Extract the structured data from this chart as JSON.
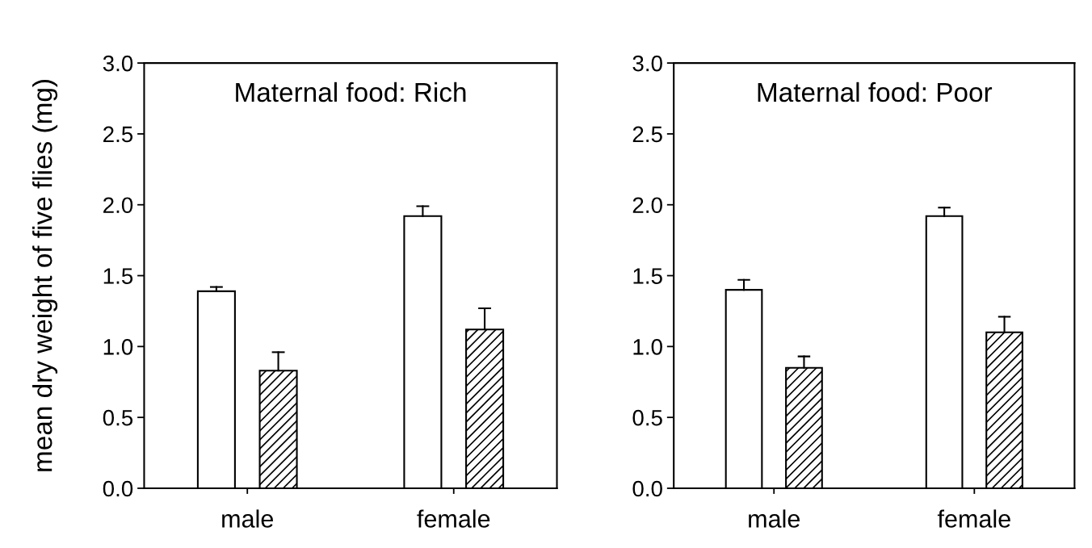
{
  "chart_data": [
    {
      "type": "bar",
      "title": "Maternal food: Rich",
      "ylabel": "mean dry weight of five flies (mg)",
      "categories": [
        "male",
        "female"
      ],
      "ylim": [
        0,
        3.0
      ],
      "yticks": [
        {
          "value": 0,
          "label": "0.0"
        },
        {
          "value": 0.5,
          "label": "0.5"
        },
        {
          "value": 1,
          "label": "1.0"
        },
        {
          "value": 1.5,
          "label": "1.5"
        },
        {
          "value": 2,
          "label": "2.0"
        },
        {
          "value": 2.5,
          "label": "2.5"
        },
        {
          "value": 3,
          "label": "3.0"
        }
      ],
      "series": [
        {
          "color": "#ffffff",
          "values": [
            1.39,
            1.92
          ],
          "errors": [
            [
              1.39,
              1.42
            ],
            [
              1.92,
              1.99
            ]
          ]
        },
        {
          "color": "#000000",
          "values": [
            0.83,
            1.12
          ],
          "errors": [
            [
              0.83,
              0.96
            ],
            [
              1.12,
              1.27
            ]
          ]
        }
      ]
    },
    {
      "type": "bar",
      "title": "Maternal food: Poor",
      "categories": [
        "male",
        "female"
      ],
      "ylim": [
        0,
        3.0
      ],
      "yticks": [
        {
          "value": 0,
          "label": "0.0"
        },
        {
          "value": 0.5,
          "label": "0.5"
        },
        {
          "value": 1,
          "label": "1.0"
        },
        {
          "value": 1.5,
          "label": "1.5"
        },
        {
          "value": 2,
          "label": "2.0"
        },
        {
          "value": 2.5,
          "label": "2.5"
        },
        {
          "value": 3,
          "label": "3.0"
        }
      ],
      "series": [
        {
          "color": "#ffffff",
          "values": [
            1.4,
            1.92
          ],
          "errors": [
            [
              1.4,
              1.47
            ],
            [
              1.92,
              1.98
            ]
          ]
        },
        {
          "color": "#000000",
          "values": [
            0.85,
            1.1
          ],
          "errors": [
            [
              0.85,
              0.93
            ],
            [
              1.1,
              1.21
            ]
          ]
        }
      ]
    }
  ]
}
